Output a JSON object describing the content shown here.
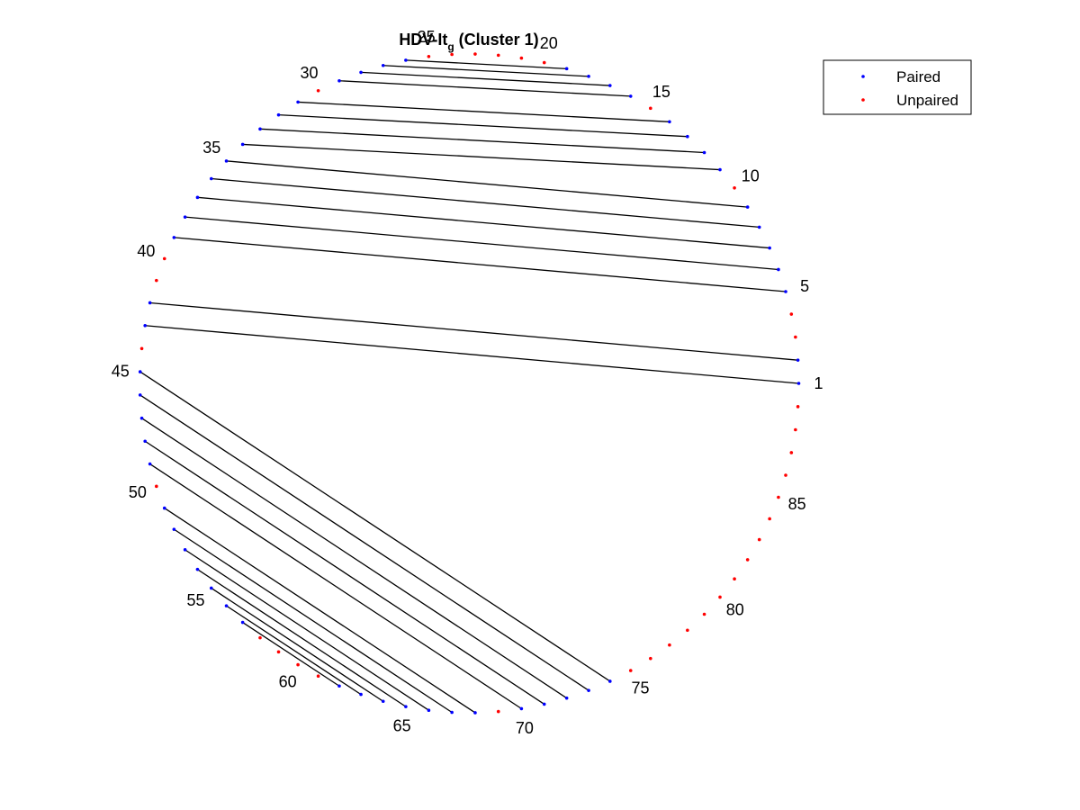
{
  "figure": {
    "title_main": "HDV-It",
    "title_sub": "g",
    "title_rest": " (Cluster 1)"
  },
  "legend": {
    "position": "top-right",
    "entries": [
      {
        "label": "Paired",
        "color": "#0000ff"
      },
      {
        "label": "Unpaired",
        "color": "#ff0000"
      }
    ]
  },
  "colors": {
    "paired": "#0000ff",
    "unpaired": "#ff0000",
    "arc": "#000000"
  },
  "chart_data": {
    "type": "arc_diagram_circular",
    "n_positions": 89,
    "start_position": 1,
    "direction": "counterclockwise",
    "labeled_positions": [
      1,
      5,
      10,
      15,
      20,
      25,
      30,
      35,
      40,
      45,
      50,
      55,
      60,
      65,
      70,
      75,
      80,
      85
    ],
    "pairs": [
      [
        1,
        43
      ],
      [
        2,
        42
      ],
      [
        5,
        39
      ],
      [
        6,
        38
      ],
      [
        7,
        37
      ],
      [
        8,
        36
      ],
      [
        9,
        35
      ],
      [
        11,
        34
      ],
      [
        12,
        33
      ],
      [
        13,
        32
      ],
      [
        14,
        31
      ],
      [
        16,
        29
      ],
      [
        17,
        28
      ],
      [
        18,
        27
      ],
      [
        19,
        26
      ],
      [
        45,
        74
      ],
      [
        46,
        73
      ],
      [
        47,
        72
      ],
      [
        48,
        71
      ],
      [
        49,
        70
      ],
      [
        51,
        68
      ],
      [
        52,
        67
      ],
      [
        53,
        66
      ],
      [
        54,
        65
      ],
      [
        55,
        64
      ],
      [
        56,
        63
      ],
      [
        57,
        62
      ]
    ]
  }
}
